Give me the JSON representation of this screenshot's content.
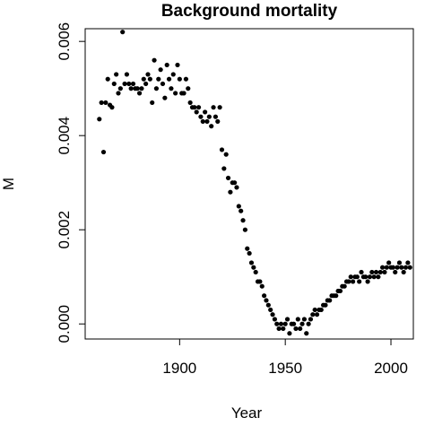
{
  "chart_data": {
    "type": "scatter",
    "title": "Background mortality",
    "x_label": "Year",
    "y_label": "M",
    "color": "#000000",
    "x": [
      1862,
      1863,
      1864,
      1865,
      1866,
      1867,
      1868,
      1869,
      1870,
      1871,
      1872,
      1873,
      1874,
      1875,
      1876,
      1877,
      1878,
      1879,
      1880,
      1881,
      1882,
      1883,
      1884,
      1885,
      1886,
      1887,
      1888,
      1889,
      1890,
      1891,
      1892,
      1893,
      1894,
      1895,
      1896,
      1897,
      1898,
      1899,
      1900,
      1901,
      1902,
      1903,
      1904,
      1905,
      1906,
      1907,
      1908,
      1909,
      1910,
      1911,
      1912,
      1913,
      1914,
      1915,
      1916,
      1917,
      1918,
      1919,
      1920,
      1921,
      1922,
      1923,
      1924,
      1925,
      1926,
      1927,
      1928,
      1929,
      1930,
      1931,
      1932,
      1933,
      1934,
      1935,
      1936,
      1937,
      1938,
      1939,
      1940,
      1941,
      1942,
      1943,
      1944,
      1945,
      1946,
      1947,
      1948,
      1949,
      1950,
      1951,
      1952,
      1953,
      1954,
      1955,
      1956,
      1957,
      1958,
      1959,
      1960,
      1961,
      1962,
      1963,
      1964,
      1965,
      1966,
      1967,
      1968,
      1969,
      1970,
      1971,
      1972,
      1973,
      1974,
      1975,
      1976,
      1977,
      1978,
      1979,
      1980,
      1981,
      1982,
      1983,
      1984,
      1985,
      1986,
      1987,
      1988,
      1989,
      1990,
      1991,
      1992,
      1993,
      1994,
      1995,
      1996,
      1997,
      1998,
      1999,
      2000,
      2001,
      2002,
      2003,
      2004,
      2005,
      2006,
      2007,
      2008,
      2009
    ],
    "values": [
      0.00435,
      0.0047,
      0.00365,
      0.0047,
      0.0052,
      0.00465,
      0.0046,
      0.0051,
      0.0053,
      0.0049,
      0.005,
      0.0062,
      0.0051,
      0.0053,
      0.0051,
      0.005,
      0.0051,
      0.005,
      0.005,
      0.0049,
      0.005,
      0.0052,
      0.0051,
      0.0053,
      0.0052,
      0.0047,
      0.0056,
      0.005,
      0.0052,
      0.0054,
      0.0051,
      0.0048,
      0.0055,
      0.0052,
      0.005,
      0.0053,
      0.0049,
      0.0055,
      0.0052,
      0.0049,
      0.0049,
      0.0052,
      0.005,
      0.0047,
      0.0046,
      0.0046,
      0.0045,
      0.0046,
      0.0044,
      0.0043,
      0.0045,
      0.0043,
      0.0044,
      0.0042,
      0.0046,
      0.0044,
      0.0043,
      0.0046,
      0.0037,
      0.0033,
      0.0036,
      0.0031,
      0.0028,
      0.003,
      0.003,
      0.0029,
      0.0025,
      0.0024,
      0.0022,
      0.002,
      0.0016,
      0.0015,
      0.0013,
      0.0012,
      0.0011,
      0.0009,
      0.0009,
      0.0008,
      0.0006,
      0.0005,
      0.0004,
      0.0003,
      0.0002,
      0.0001,
      0.0,
      -0.0001,
      0.0,
      -0.0001,
      0.0,
      0.0001,
      -0.0002,
      0.0,
      0.0,
      -0.0001,
      0.0001,
      -0.0001,
      0.0,
      0.0001,
      -0.0002,
      0.0,
      0.0001,
      0.0002,
      0.0003,
      0.0002,
      0.0003,
      0.0003,
      0.0004,
      0.0004,
      0.0005,
      0.0005,
      0.0006,
      0.0006,
      0.0006,
      0.0007,
      0.0007,
      0.0008,
      0.0008,
      0.0009,
      0.0009,
      0.001,
      0.0009,
      0.001,
      0.001,
      0.0009,
      0.0011,
      0.001,
      0.001,
      0.0009,
      0.001,
      0.0011,
      0.001,
      0.0011,
      0.001,
      0.0011,
      0.0012,
      0.0011,
      0.0012,
      0.0013,
      0.0012,
      0.0012,
      0.0011,
      0.0012,
      0.0013,
      0.0012,
      0.0011,
      0.0012,
      0.0013,
      0.0012
    ],
    "xlim": [
      1855.3,
      2010.6
    ],
    "ylim": [
      -0.00032,
      0.00627
    ],
    "xticks": [
      1900,
      1950,
      2000
    ],
    "yticks": [
      {
        "value": 0,
        "label": "0.000"
      },
      {
        "value": 0.002,
        "label": "0.002"
      },
      {
        "value": 0.004,
        "label": "0.004"
      },
      {
        "value": 0.006,
        "label": "0.006"
      }
    ]
  }
}
